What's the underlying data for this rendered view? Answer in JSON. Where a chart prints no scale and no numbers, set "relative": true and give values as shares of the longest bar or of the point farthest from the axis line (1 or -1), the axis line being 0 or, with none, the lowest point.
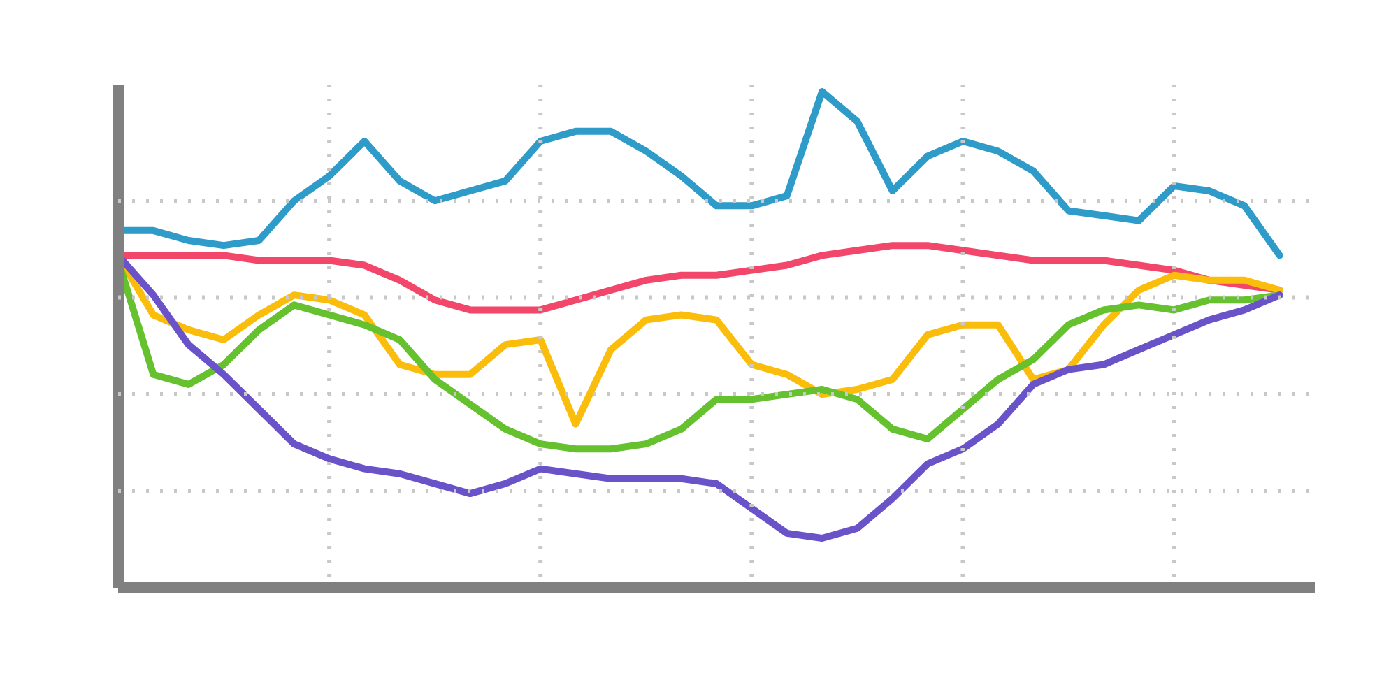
{
  "chart_data": {
    "type": "line",
    "relative": true,
    "grid": true,
    "marker": "none",
    "line_style": "solid",
    "categories": [
      null,
      null,
      null,
      null,
      null,
      null,
      null,
      null,
      null,
      null,
      null,
      null,
      null,
      null,
      null,
      null,
      null,
      null,
      null,
      null,
      null,
      null,
      null,
      null,
      null,
      null,
      null,
      null,
      null,
      null,
      null,
      null,
      null,
      null
    ],
    "series": [
      {
        "color": "#2e9bc9",
        "values": [
          0.72,
          0.72,
          0.7,
          0.69,
          0.7,
          0.78,
          0.83,
          0.9,
          0.82,
          0.78,
          0.8,
          0.82,
          0.9,
          0.92,
          0.92,
          0.88,
          0.83,
          0.77,
          0.77,
          0.79,
          1.0,
          0.94,
          0.8,
          0.87,
          0.9,
          0.88,
          0.84,
          0.76,
          0.75,
          0.74,
          0.81,
          0.8,
          0.77,
          0.67
        ]
      },
      {
        "color": "#f2476a",
        "values": [
          0.67,
          0.67,
          0.67,
          0.67,
          0.66,
          0.66,
          0.66,
          0.65,
          0.62,
          0.58,
          0.56,
          0.56,
          0.56,
          0.58,
          0.6,
          0.62,
          0.63,
          0.63,
          0.64,
          0.65,
          0.67,
          0.68,
          0.69,
          0.69,
          0.68,
          0.67,
          0.66,
          0.66,
          0.66,
          0.65,
          0.64,
          0.62,
          0.61,
          0.6
        ]
      },
      {
        "color": "#fbbd0c",
        "values": [
          0.67,
          0.55,
          0.52,
          0.5,
          0.55,
          0.59,
          0.58,
          0.55,
          0.45,
          0.43,
          0.43,
          0.49,
          0.5,
          0.33,
          0.48,
          0.54,
          0.55,
          0.54,
          0.45,
          0.43,
          0.39,
          0.4,
          0.42,
          0.51,
          0.53,
          0.53,
          0.42,
          0.44,
          0.53,
          0.6,
          0.63,
          0.62,
          0.62,
          0.6
        ]
      },
      {
        "color": "#66c12f",
        "values": [
          0.66,
          0.43,
          0.41,
          0.45,
          0.52,
          0.57,
          0.55,
          0.53,
          0.5,
          0.42,
          0.37,
          0.32,
          0.29,
          0.28,
          0.28,
          0.29,
          0.32,
          0.38,
          0.38,
          0.39,
          0.4,
          0.38,
          0.32,
          0.3,
          0.36,
          0.42,
          0.46,
          0.53,
          0.56,
          0.57,
          0.56,
          0.58,
          0.58,
          0.59
        ]
      },
      {
        "color": "#6a52c9",
        "values": [
          0.67,
          0.59,
          0.49,
          0.43,
          0.36,
          0.29,
          0.26,
          0.24,
          0.23,
          0.21,
          0.19,
          0.21,
          0.24,
          0.23,
          0.22,
          0.22,
          0.22,
          0.21,
          0.16,
          0.11,
          0.1,
          0.12,
          0.18,
          0.25,
          0.28,
          0.33,
          0.41,
          0.44,
          0.45,
          0.48,
          0.51,
          0.54,
          0.56,
          0.59
        ]
      }
    ]
  }
}
